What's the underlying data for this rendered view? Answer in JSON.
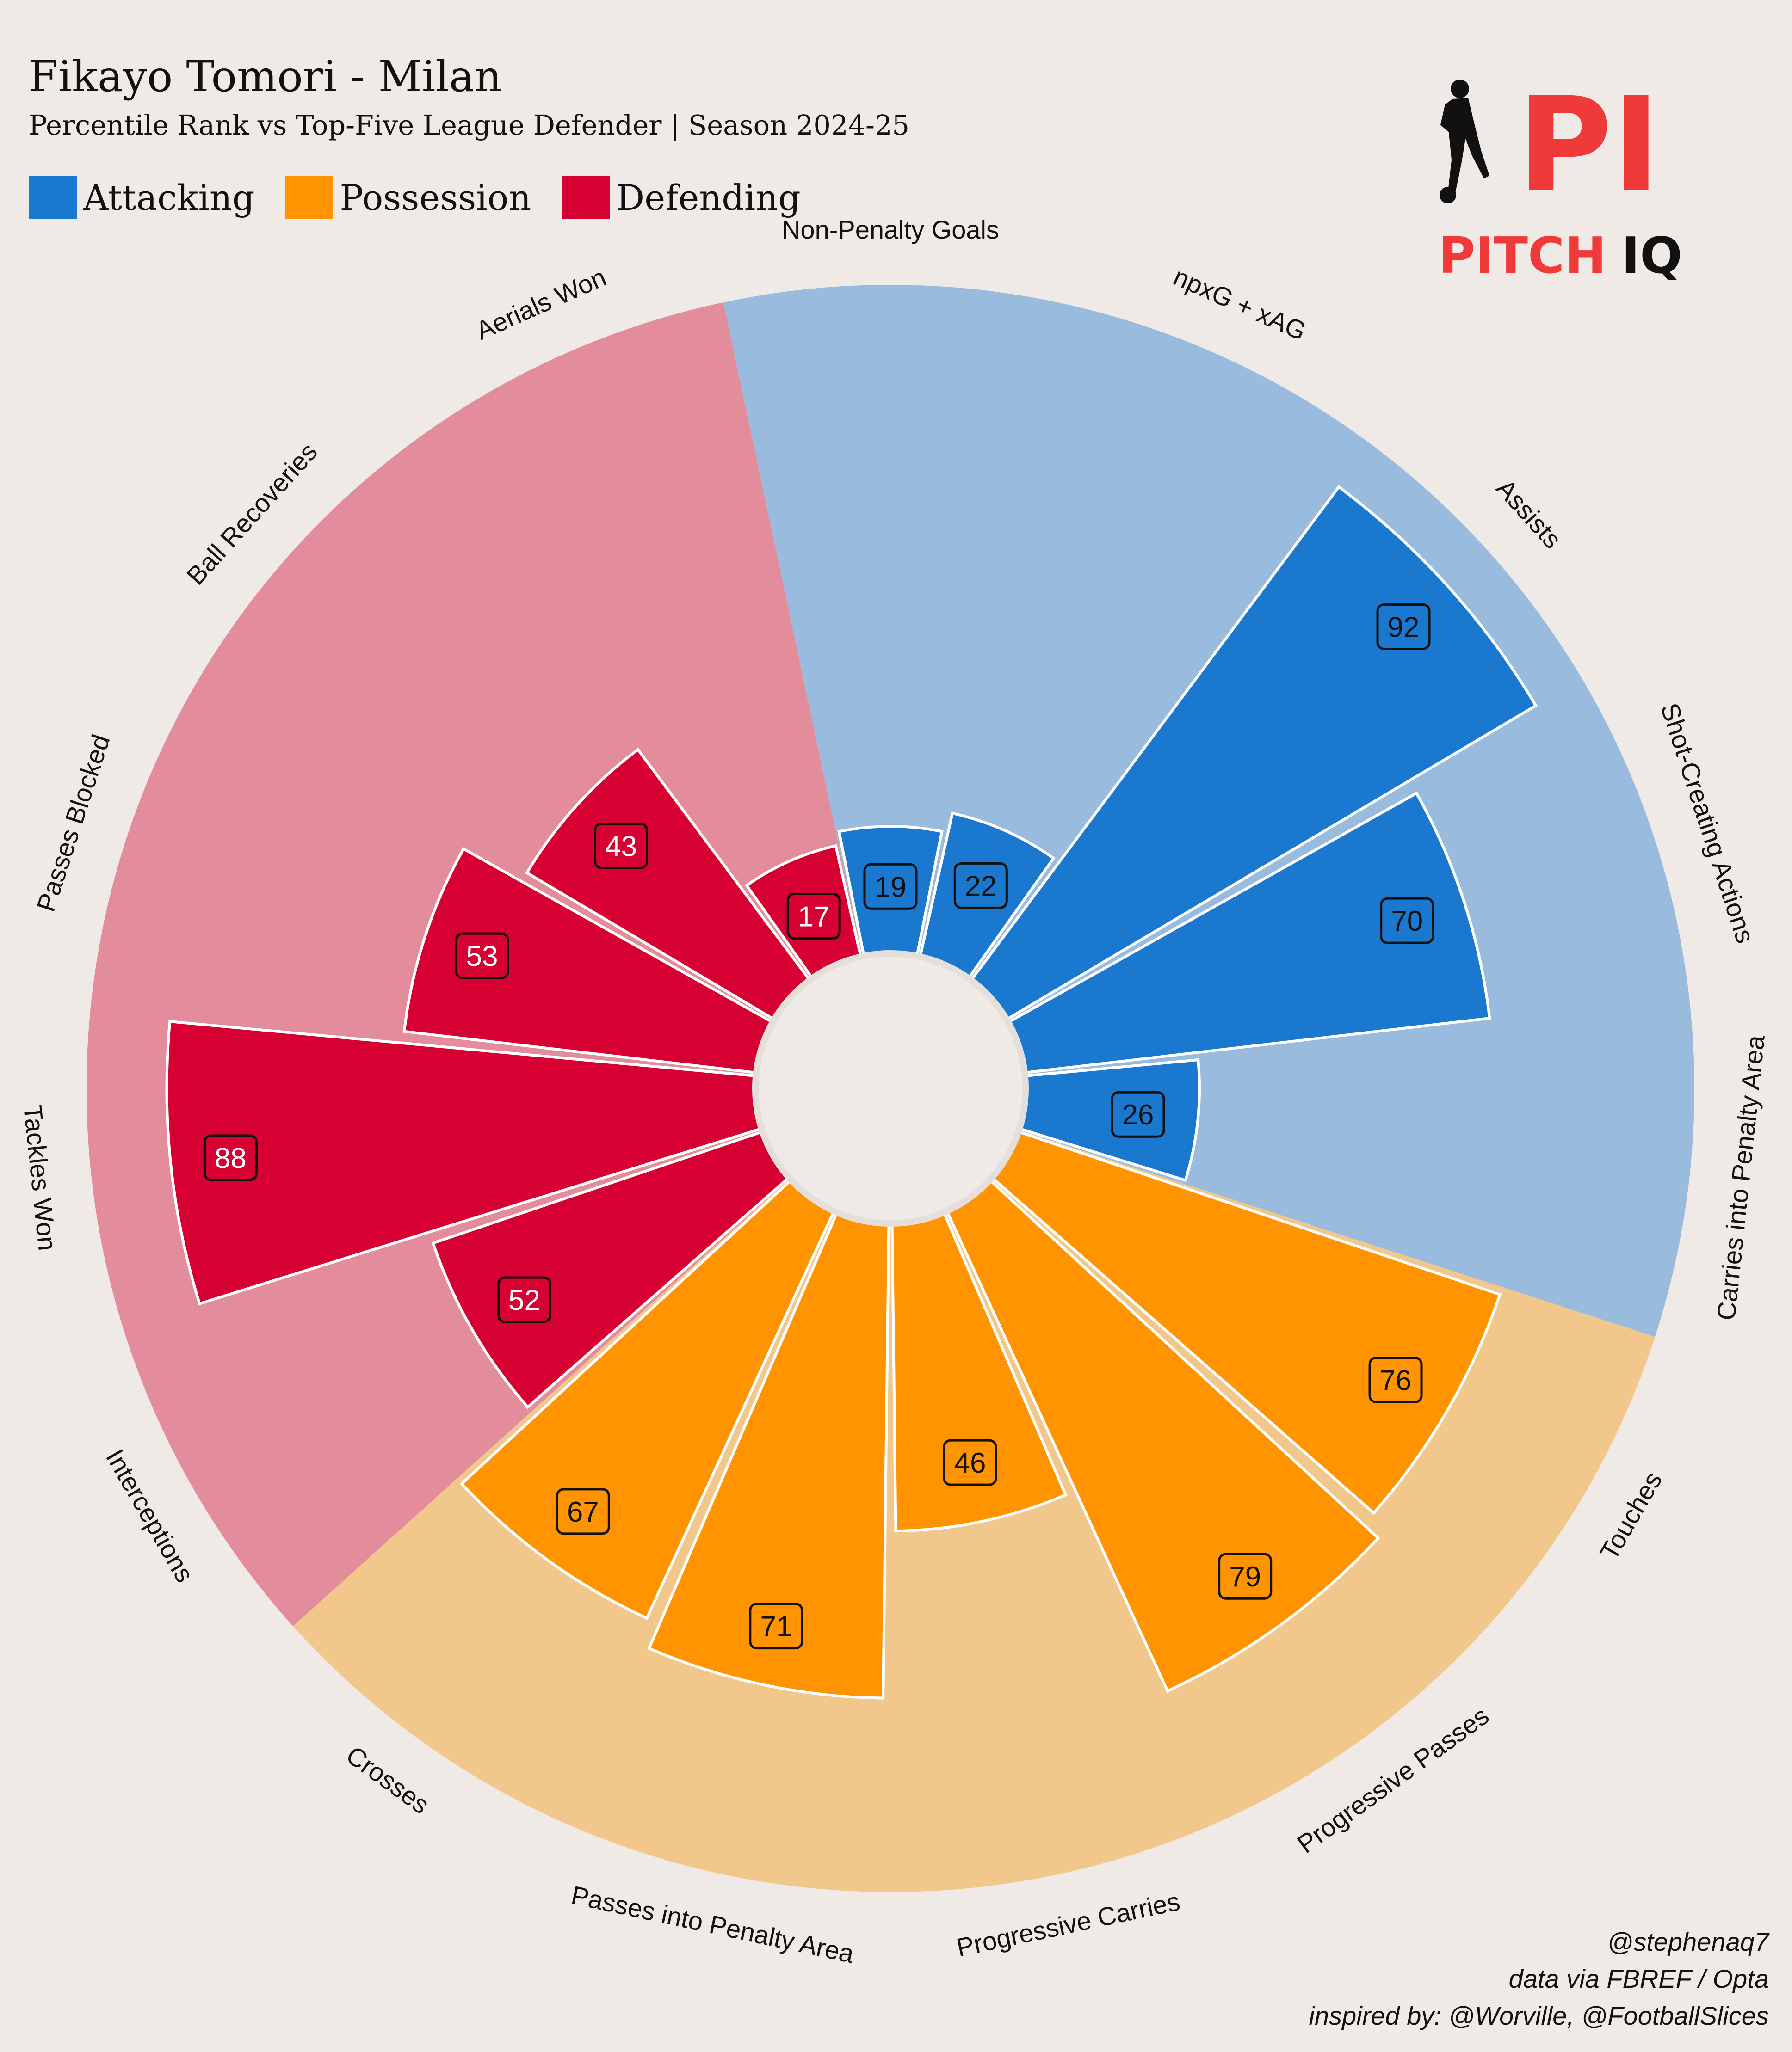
{
  "header": {
    "title": "Fikayo Tomori - Milan",
    "subtitle": "Percentile Rank vs Top-Five League Defender | Season 2024-25"
  },
  "legend": [
    {
      "label": "Attacking",
      "color": "#1b78cf"
    },
    {
      "label": "Possession",
      "color": "#ff9400"
    },
    {
      "label": "Defending",
      "color": "#d70032"
    }
  ],
  "logo": {
    "mark": "PI",
    "word1": "PITCH",
    "word2": "IQ",
    "icon": "footballer-silhouette-icon"
  },
  "footer": {
    "line1": "@stephenaq7",
    "line2": "data via FBREF / Opta",
    "line3": "inspired by: @Worville, @FootballSlices"
  },
  "chart_data": {
    "type": "bar",
    "polar": true,
    "ylim": [
      0,
      100
    ],
    "groups": {
      "Attacking": {
        "color": "#1b78cf",
        "background": "#99bcde"
      },
      "Possession": {
        "color": "#ff9400",
        "background": "#f2c78c"
      },
      "Defending": {
        "color": "#d70032",
        "background": "#e38c9b"
      }
    },
    "categories": [
      "Non-Penalty Goals",
      "npxG + xAG",
      "Assists",
      "Shot-Creating Actions",
      "Carries into Penalty Area",
      "Touches",
      "Progressive Passes",
      "Progressive Carries",
      "Passes into Penalty Area",
      "Crosses",
      "Interceptions",
      "Tackles Won",
      "Passes Blocked",
      "Ball Recoveries",
      "Aerials Won"
    ],
    "group_of_category": [
      "Attacking",
      "Attacking",
      "Attacking",
      "Attacking",
      "Attacking",
      "Possession",
      "Possession",
      "Possession",
      "Possession",
      "Possession",
      "Defending",
      "Defending",
      "Defending",
      "Defending",
      "Defending"
    ],
    "values": [
      19,
      22,
      92,
      70,
      26,
      76,
      79,
      46,
      71,
      67,
      52,
      88,
      53,
      43,
      17
    ]
  }
}
